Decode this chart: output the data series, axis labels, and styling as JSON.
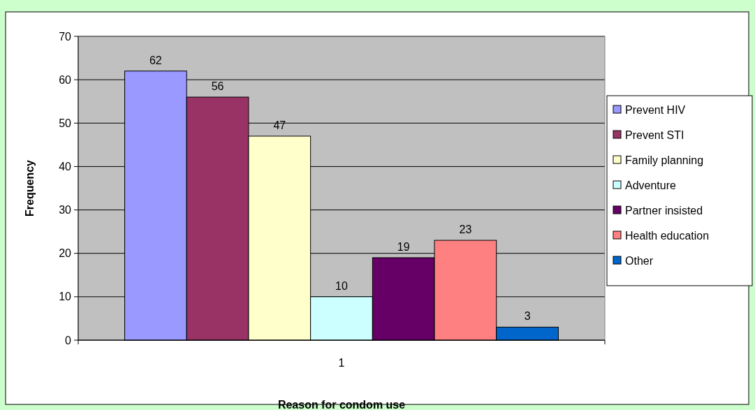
{
  "chart_data": {
    "type": "bar",
    "xlabel": "Reason for condom use",
    "ylabel": "Frequency",
    "categories": [
      "1"
    ],
    "series": [
      {
        "name": "Prevent HIV",
        "color": "#9999ff",
        "values": [
          62
        ]
      },
      {
        "name": "Prevent STI",
        "color": "#993366",
        "values": [
          56
        ]
      },
      {
        "name": "Family planning",
        "color": "#ffffcc",
        "values": [
          47
        ]
      },
      {
        "name": "Adventure",
        "color": "#ccffff",
        "values": [
          10
        ]
      },
      {
        "name": "Partner insisted",
        "color": "#660066",
        "values": [
          19
        ]
      },
      {
        "name": "Health education",
        "color": "#ff8080",
        "values": [
          23
        ]
      },
      {
        "name": "Other",
        "color": "#0066cc",
        "values": [
          3
        ]
      }
    ],
    "ylim": [
      0,
      70
    ],
    "yticks": [
      0,
      10,
      20,
      30,
      40,
      50,
      60,
      70
    ],
    "grid": "y",
    "legend": "right",
    "data_labels": true
  }
}
